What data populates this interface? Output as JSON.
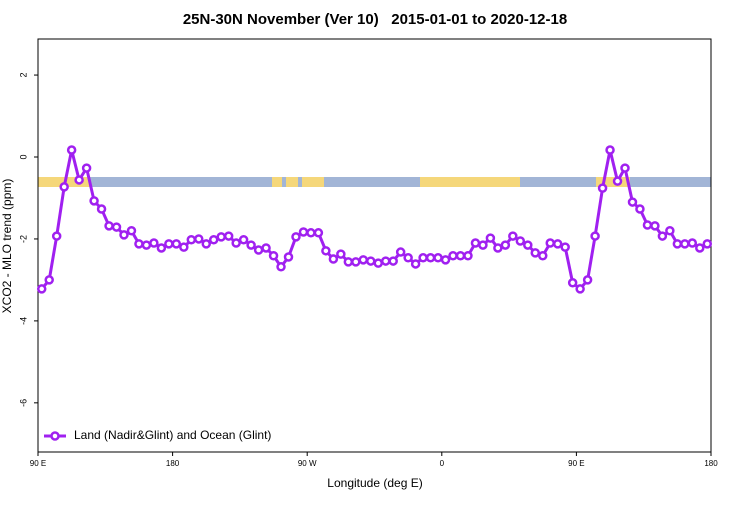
{
  "chart_data": {
    "type": "line",
    "title": "25N-30N November (Ver 10)   2015-01-01 to 2020-12-18",
    "x_label": "Longitude (deg E)",
    "y_label": "XCO2 - MLO trend (ppm)",
    "x": [
      92.5,
      97.5,
      102.5,
      107.5,
      112.5,
      117.5,
      122.5,
      127.5,
      132.5,
      137.5,
      142.5,
      147.5,
      152.5,
      157.5,
      162.5,
      167.5,
      172.5,
      177.5,
      182.5,
      187.5,
      192.5,
      197.5,
      202.5,
      207.5,
      212.5,
      217.5,
      222.5,
      227.5,
      232.5,
      237.5,
      242.5,
      247.5,
      252.5,
      257.5,
      262.5,
      267.5,
      272.5,
      277.5,
      282.5,
      287.5,
      292.5,
      297.5,
      302.5,
      307.5,
      312.5,
      317.5,
      322.5,
      327.5,
      332.5,
      337.5,
      342.5,
      347.5,
      352.5,
      357.5,
      362.5,
      367.5,
      372.5,
      377.5,
      382.5,
      387.5,
      392.5,
      397.5,
      402.5,
      407.5,
      412.5,
      417.5,
      422.5,
      427.5,
      432.5,
      437.5,
      442.5,
      447.5,
      452.5,
      457.5,
      462.5,
      467.5,
      472.5,
      477.5,
      482.5,
      487.5,
      492.5,
      497.5,
      502.5,
      507.5,
      512.5,
      517.5,
      522.5,
      527.5,
      532.5,
      537.5
    ],
    "series": [
      {
        "name": "Land (Nadir&Glint) and Ocean (Glint)",
        "color": "#a020f0",
        "values": [
          -3.22,
          -3.0,
          -1.93,
          -0.73,
          0.17,
          -0.56,
          -0.27,
          -1.07,
          -1.27,
          -1.68,
          -1.71,
          -1.9,
          -1.8,
          -2.12,
          -2.15,
          -2.1,
          -2.22,
          -2.12,
          -2.12,
          -2.2,
          -2.02,
          -2.0,
          -2.12,
          -2.02,
          -1.95,
          -1.93,
          -2.1,
          -2.02,
          -2.15,
          -2.27,
          -2.22,
          -2.41,
          -2.68,
          -2.44,
          -1.95,
          -1.83,
          -1.85,
          -1.85,
          -2.29,
          -2.49,
          -2.37,
          -2.56,
          -2.56,
          -2.51,
          -2.54,
          -2.59,
          -2.54,
          -2.54,
          -2.32,
          -2.46,
          -2.61,
          -2.46,
          -2.46,
          -2.46,
          -2.51,
          -2.41,
          -2.41,
          -2.41,
          -2.1,
          -2.15,
          -1.98,
          -2.22,
          -2.15,
          -1.93,
          -2.05,
          -2.15,
          -2.34,
          -2.41,
          -2.1,
          -2.12,
          -2.2,
          -3.07,
          -3.22,
          -3.0,
          -1.93,
          -0.76,
          0.17,
          -0.59,
          -0.27,
          -1.1,
          -1.27,
          -1.66,
          -1.68,
          -1.93,
          -1.8,
          -2.12,
          -2.12,
          -2.1,
          -2.22,
          -2.12
        ]
      }
    ],
    "xlim": [
      90,
      540
    ],
    "xticks": [
      {
        "value": 90,
        "label": "90 E"
      },
      180,
      {
        "value": 270,
        "label": "90 W"
      },
      {
        "value": 360,
        "label": "0"
      },
      {
        "value": 450,
        "label": "90 E"
      },
      180
    ],
    "ylim": [
      -7.2,
      2.88
    ],
    "yticks": [
      -6,
      -4,
      -2,
      0,
      2
    ],
    "legend": "bottom-left"
  }
}
